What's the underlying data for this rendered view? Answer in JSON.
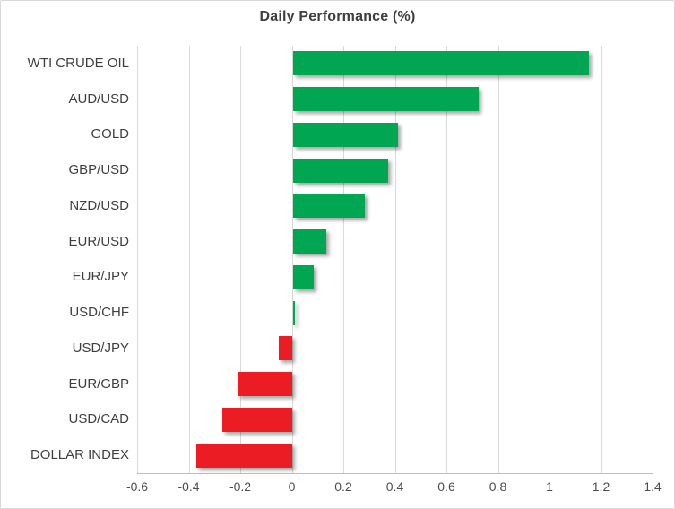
{
  "title": "Daily Performance (%)",
  "chart_data": {
    "type": "bar",
    "orientation": "horizontal",
    "title": "Daily Performance (%)",
    "xlabel": "",
    "ylabel": "",
    "categories": [
      "WTI CRUDE OIL",
      "AUD/USD",
      "GOLD",
      "GBP/USD",
      "NZD/USD",
      "EUR/USD",
      "EUR/JPY",
      "USD/CHF",
      "USD/JPY",
      "EUR/GBP",
      "USD/CAD",
      "DOLLAR INDEX"
    ],
    "values": [
      1.15,
      0.72,
      0.41,
      0.37,
      0.28,
      0.13,
      0.08,
      0.01,
      -0.05,
      -0.21,
      -0.27,
      -0.37
    ],
    "xlim": [
      -0.6,
      1.4
    ],
    "xticks": [
      -0.6,
      -0.4,
      -0.2,
      0,
      0.2,
      0.4,
      0.6,
      0.8,
      1,
      1.2,
      1.4
    ],
    "xtick_labels": [
      "-0.6",
      "-0.4",
      "-0.2",
      "0",
      "0.2",
      "0.4",
      "0.6",
      "0.8",
      "1",
      "1.2",
      "1.4"
    ],
    "grid": "vertical-only",
    "legend": false,
    "colors": {
      "positive": "#00a651",
      "negative": "#ec1c24",
      "gridline": "#d9d9d9",
      "axis_line": "#bfbfbf",
      "title_text": "#3f3f3f",
      "label_text": "#404040",
      "tick_text": "#4d4d4d"
    }
  }
}
